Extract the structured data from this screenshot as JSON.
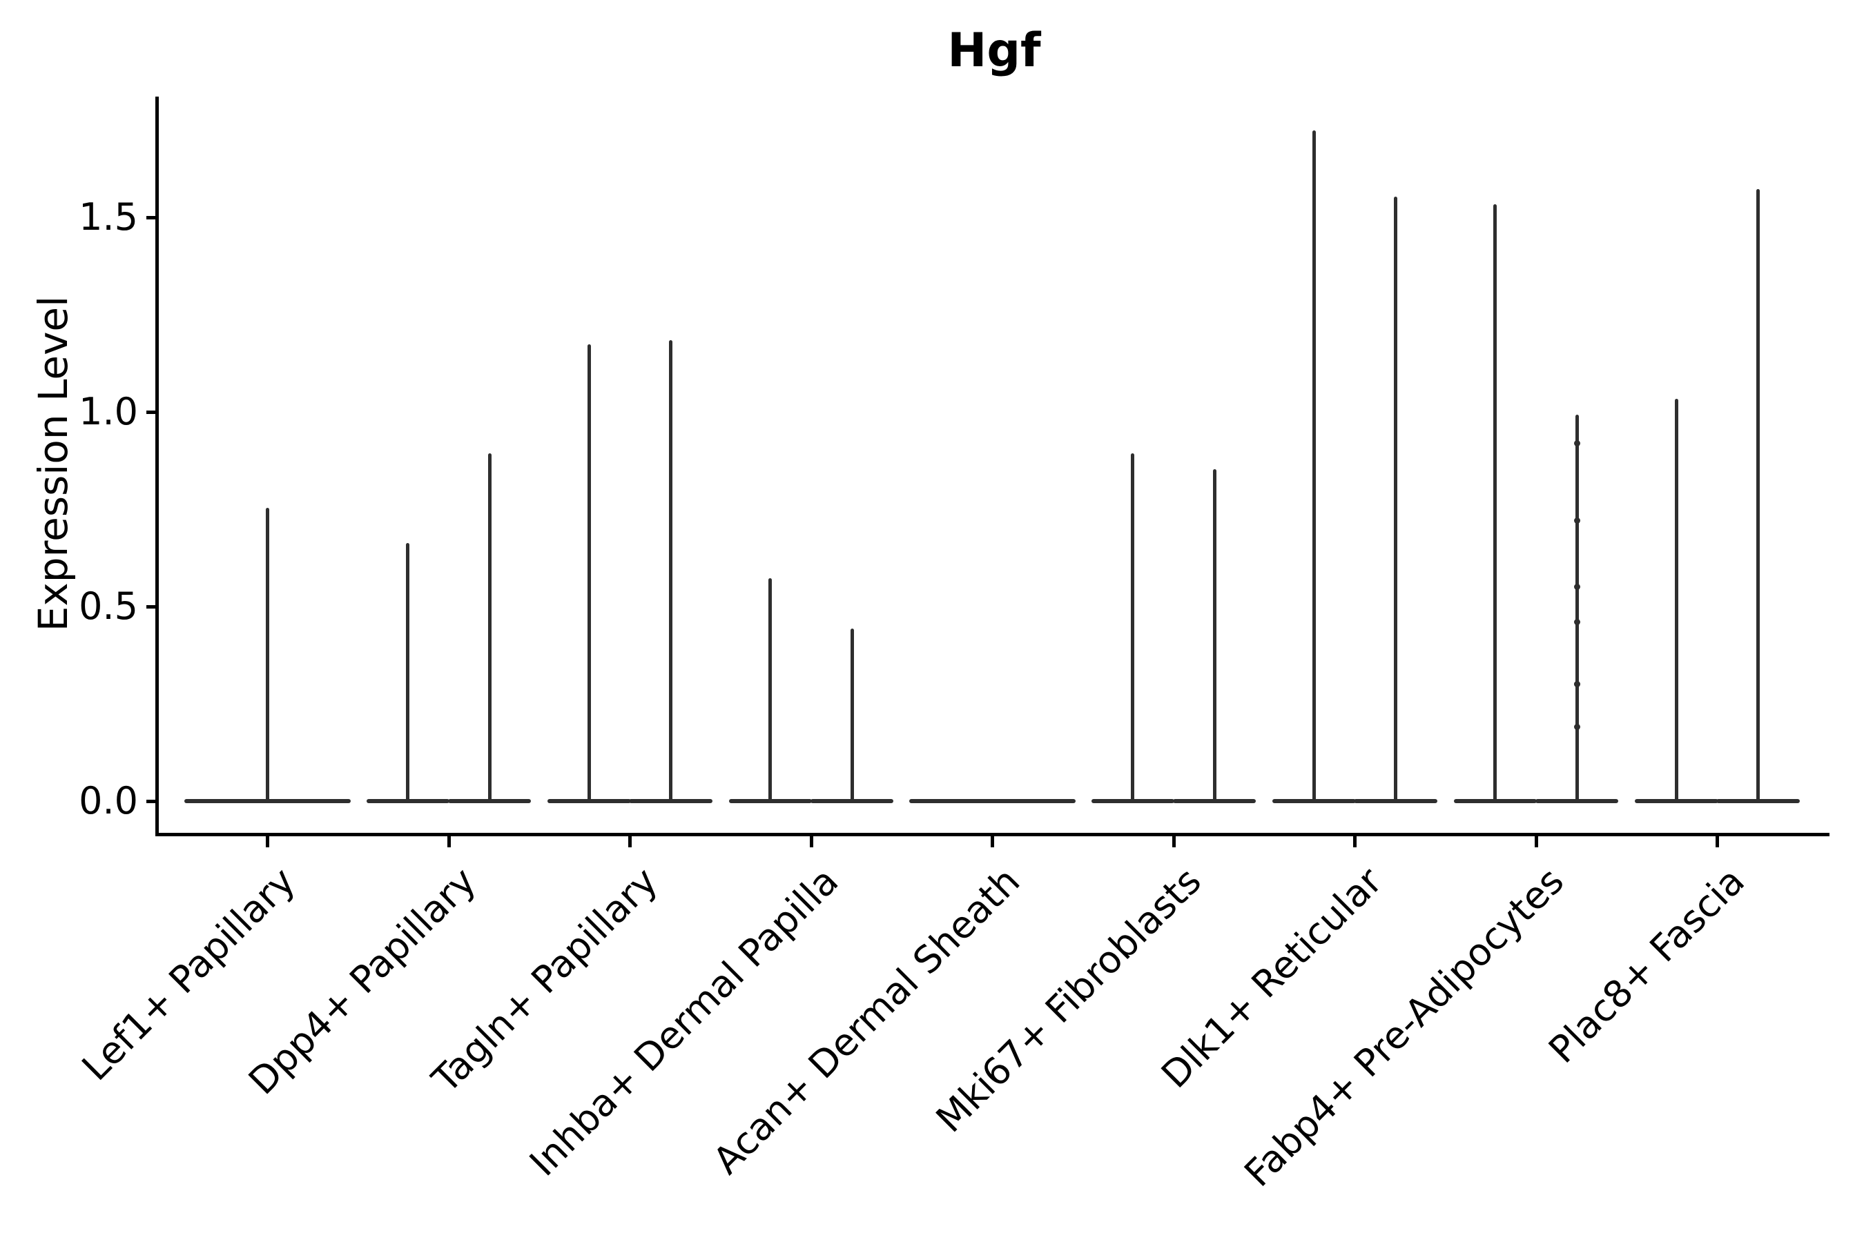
{
  "title": "Hgf",
  "axes": {
    "ylabel": "Expression Level",
    "ytick_labels": [
      "0.0",
      "0.5",
      "1.0",
      "1.5"
    ]
  },
  "chart_data": {
    "type": "violin",
    "title": "Hgf",
    "xlabel": "",
    "ylabel": "Expression Level",
    "ylim": [
      -0.09,
      1.81
    ],
    "yticks": [
      0.0,
      0.5,
      1.0,
      1.5
    ],
    "grid": false,
    "legend": "none",
    "categories": [
      "Lef1+ Papillary",
      "Dpp4+ Papillary",
      "Tagln+ Papillary",
      "Inhba+ Dermal Papilla",
      "Acan+ Dermal Sheath",
      "Mki67+ Fibroblasts",
      "Dlk1+ Reticular",
      "Fabp4+ Pre-Adipocytes",
      "Plac8+ Fascia"
    ],
    "description": "Violin plot of Hgf expression; most cells at 0 giving flat bases with thin spikes up to the max expressing cells. Categories with two violins have paired groups side by side.",
    "violins": [
      {
        "category": "Lef1+ Papillary",
        "items": [
          {
            "offset": 0,
            "width": 0.92,
            "max": 0.75
          }
        ]
      },
      {
        "category": "Dpp4+ Papillary",
        "items": [
          {
            "offset": -0.225,
            "width": 0.46,
            "max": 0.66
          },
          {
            "offset": 0.225,
            "width": 0.46,
            "max": 0.89
          }
        ]
      },
      {
        "category": "Tagln+ Papillary",
        "items": [
          {
            "offset": -0.225,
            "width": 0.46,
            "max": 1.17
          },
          {
            "offset": 0.225,
            "width": 0.46,
            "max": 1.18
          }
        ]
      },
      {
        "category": "Inhba+ Dermal Papilla",
        "items": [
          {
            "offset": -0.225,
            "width": 0.46,
            "max": 0.57
          },
          {
            "offset": 0.225,
            "width": 0.46,
            "max": 0.44
          }
        ]
      },
      {
        "category": "Acan+ Dermal Sheath",
        "items": [
          {
            "offset": 0,
            "width": 0.92,
            "max": 0
          }
        ]
      },
      {
        "category": "Mki67+ Fibroblasts",
        "items": [
          {
            "offset": -0.225,
            "width": 0.46,
            "max": 0.89
          },
          {
            "offset": 0.225,
            "width": 0.46,
            "max": 0.85
          }
        ]
      },
      {
        "category": "Dlk1+ Reticular",
        "items": [
          {
            "offset": -0.225,
            "width": 0.46,
            "max": 1.72
          },
          {
            "offset": 0.225,
            "width": 0.46,
            "max": 1.55
          }
        ]
      },
      {
        "category": "Fabp4+ Pre-Adipocytes",
        "items": [
          {
            "offset": -0.225,
            "width": 0.46,
            "max": 1.53
          },
          {
            "offset": 0.225,
            "width": 0.46,
            "max": 0.99,
            "points": [
              0.92,
              0.72,
              0.55,
              0.46,
              0.3,
              0.3,
              0.19
            ]
          }
        ]
      },
      {
        "category": "Plac8+ Fascia",
        "items": [
          {
            "offset": -0.225,
            "width": 0.46,
            "max": 1.03
          },
          {
            "offset": 0.225,
            "width": 0.46,
            "max": 1.57
          }
        ]
      }
    ],
    "style": {
      "violin_color": "#2e2e2e",
      "axis_color": "#000000",
      "background": "#ffffff",
      "x_tick_label_rotation_deg": 45
    }
  }
}
